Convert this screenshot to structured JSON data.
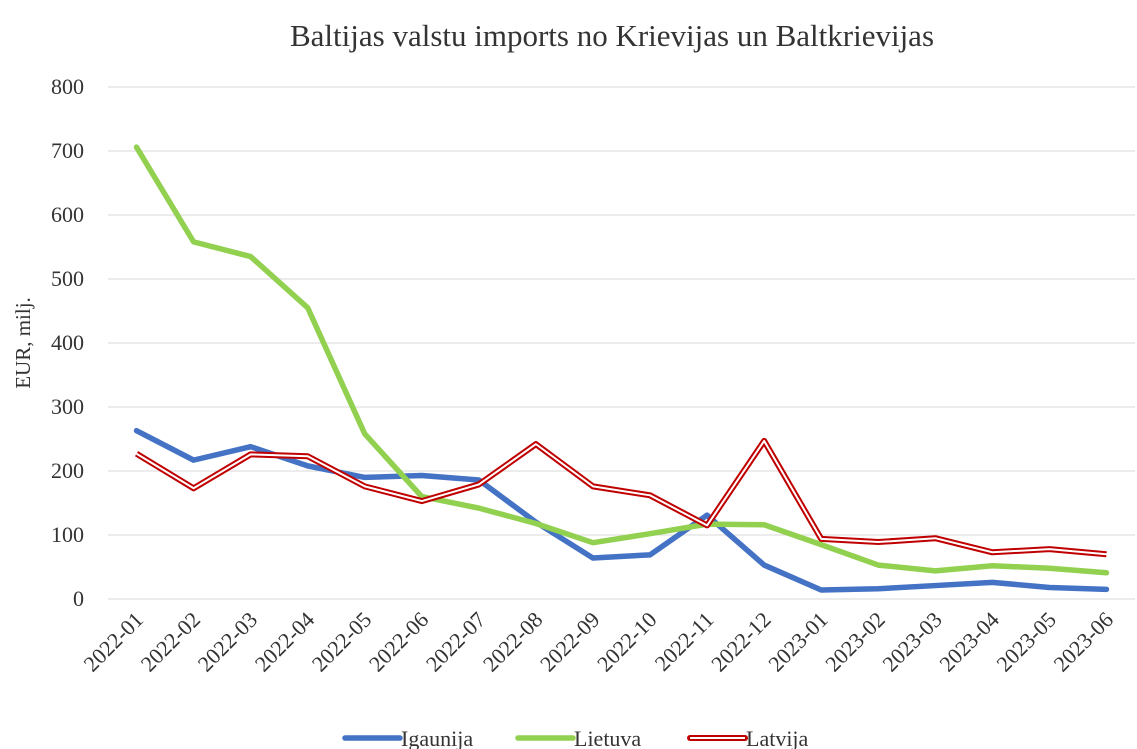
{
  "chart_data": {
    "type": "line",
    "title": "Baltijas valstu imports no Krievijas un Baltkrievijas",
    "y_label": "EUR, milj.",
    "categories": [
      "2022-01",
      "2022-02",
      "2022-03",
      "2022-04",
      "2022-05",
      "2022-06",
      "2022-07",
      "2022-08",
      "2022-09",
      "2022-10",
      "2022-11",
      "2022-12",
      "2023-01",
      "2023-02",
      "2023-03",
      "2023-04",
      "2023-05",
      "2023-06"
    ],
    "series": [
      {
        "name": "Igaunija",
        "color": "#4472c4",
        "values": [
          263,
          217,
          238,
          208,
          190,
          193,
          186,
          120,
          64,
          69,
          131,
          53,
          14,
          16,
          21,
          26,
          18,
          15
        ]
      },
      {
        "name": "Lietuva",
        "color": "#92d050",
        "values": [
          706,
          558,
          535,
          455,
          258,
          160,
          142,
          118,
          88,
          102,
          117,
          116,
          85,
          53,
          44,
          52,
          48,
          41
        ]
      },
      {
        "name": "Latvija",
        "color": "#c00000",
        "double": true,
        "values": [
          227,
          173,
          226,
          223,
          176,
          153,
          179,
          242,
          176,
          162,
          115,
          247,
          94,
          89,
          95,
          73,
          78,
          70
        ]
      }
    ],
    "ylim": [
      0,
      800
    ],
    "yticks": [
      0,
      100,
      200,
      300,
      400,
      500,
      600,
      700,
      800
    ],
    "grid": true,
    "legend": "bottom"
  }
}
